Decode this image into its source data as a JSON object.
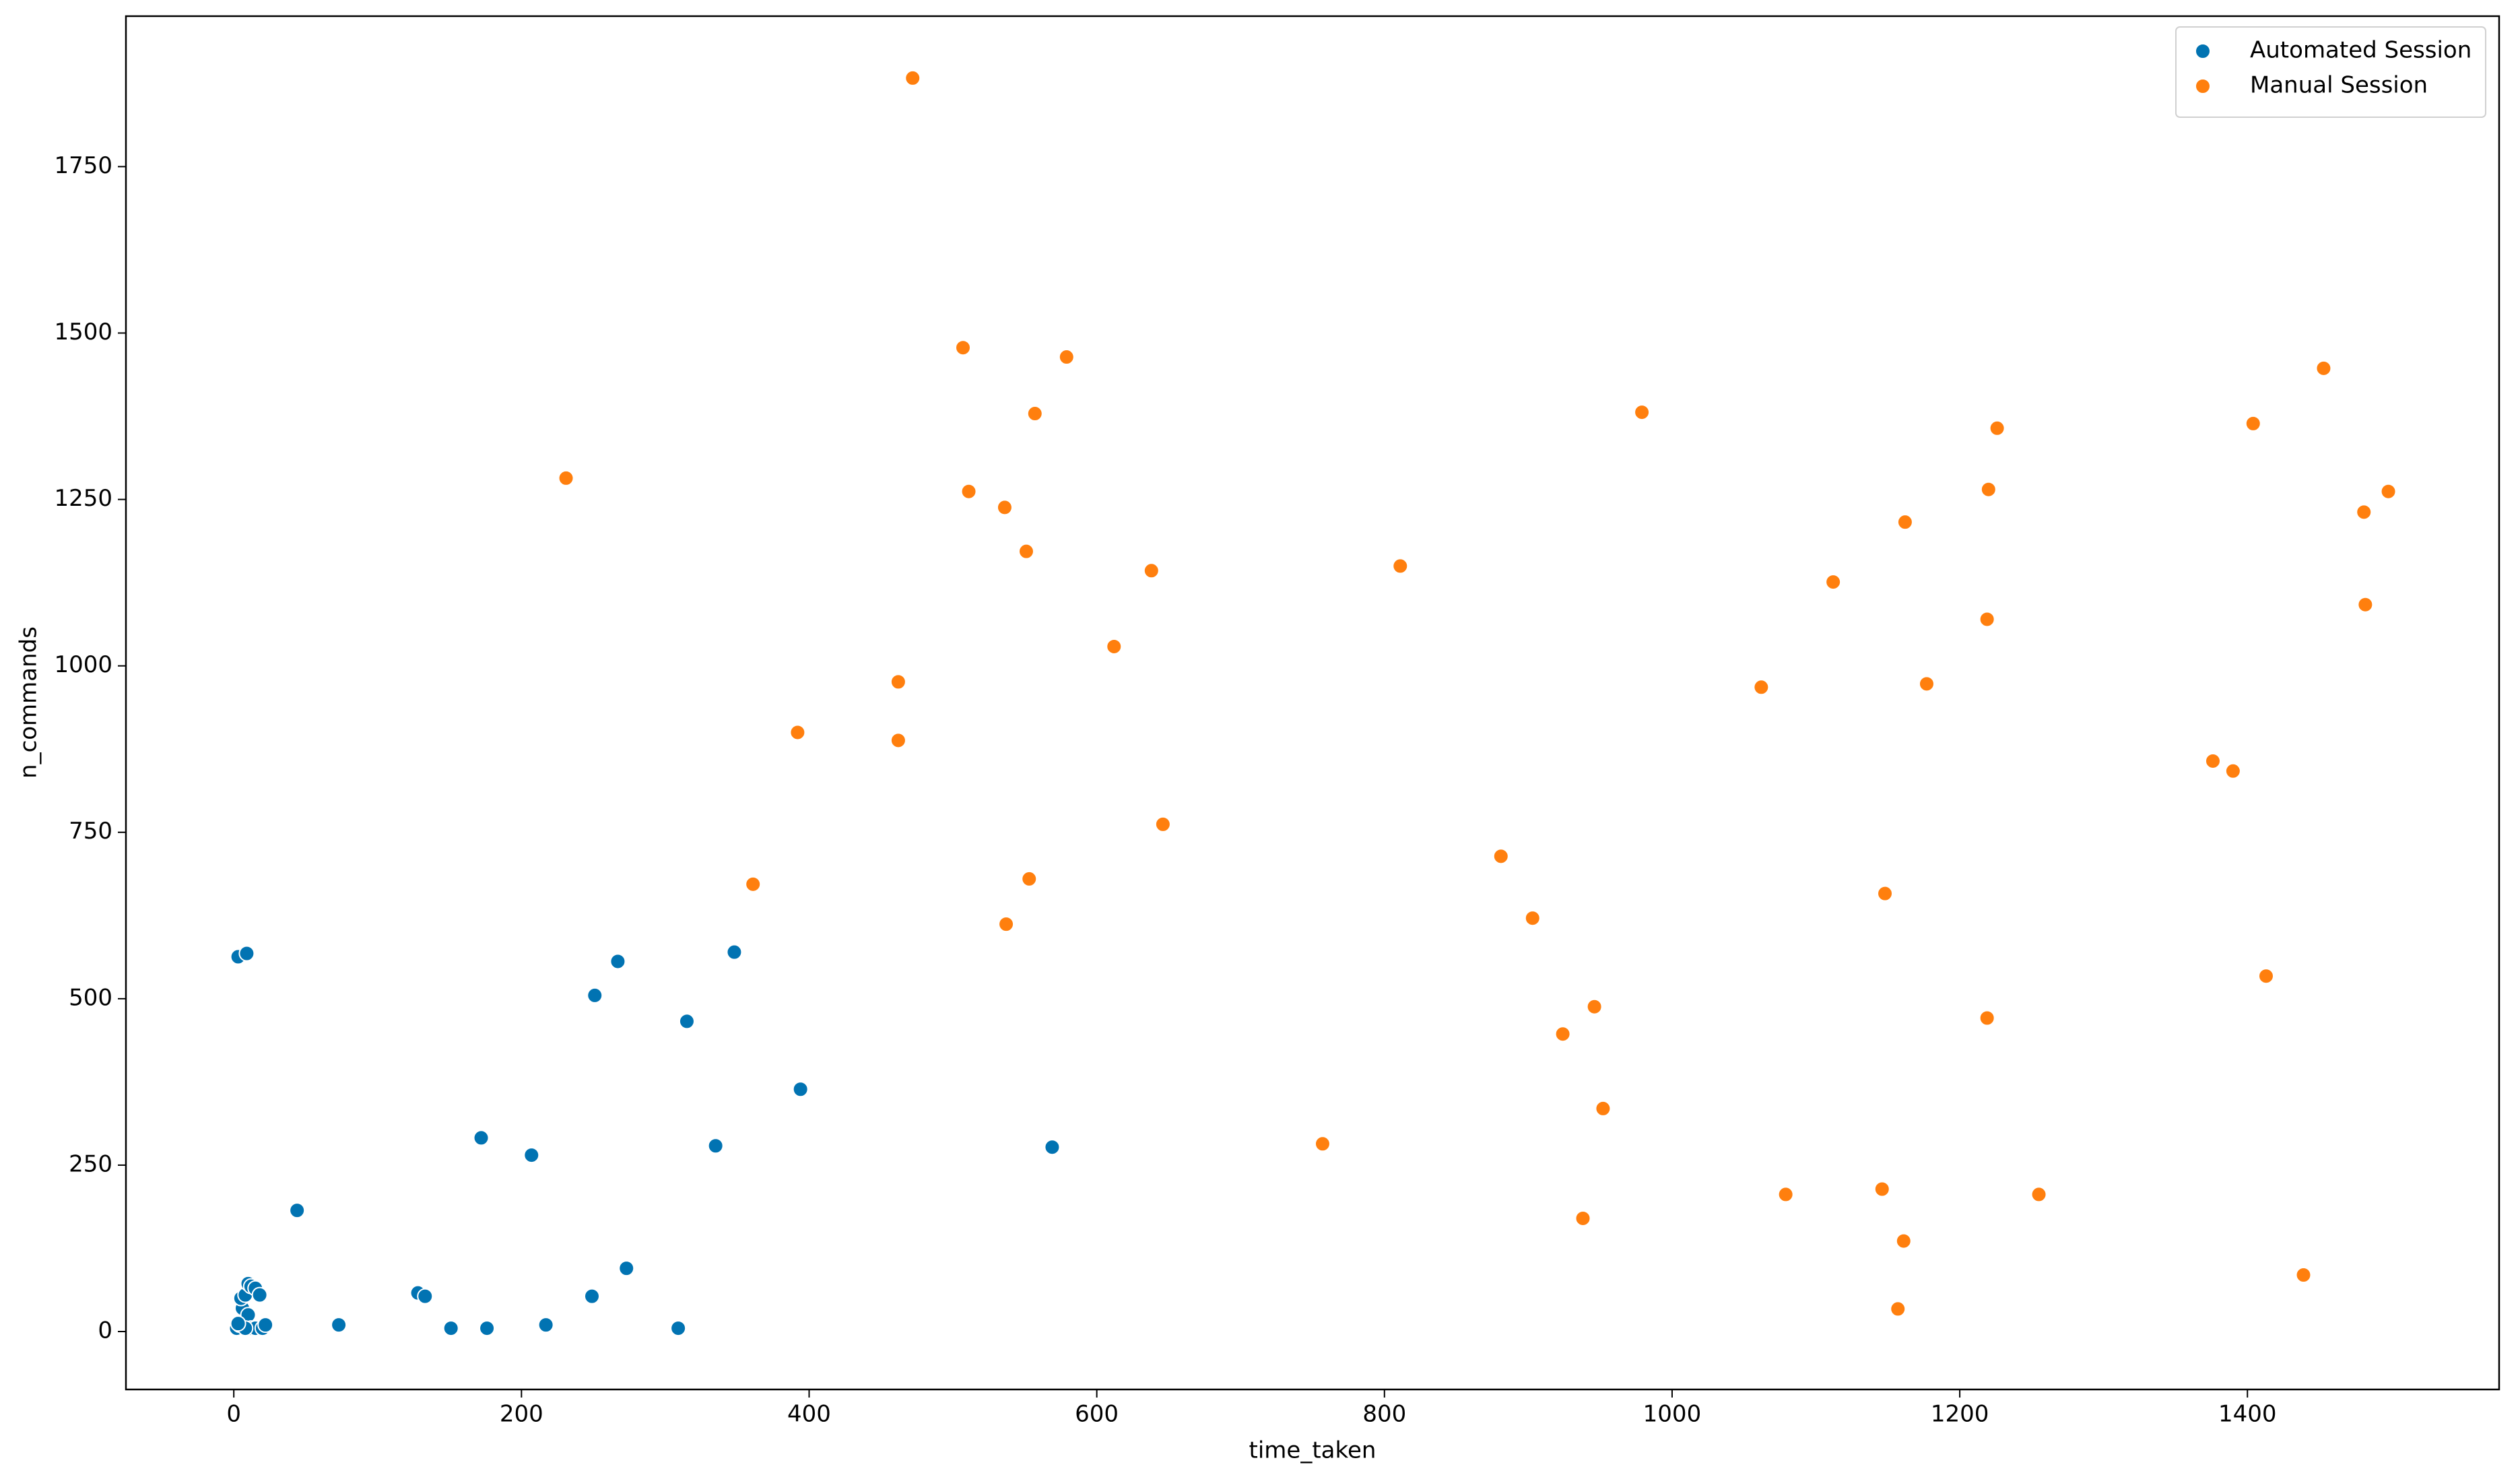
{
  "chart_data": {
    "type": "scatter",
    "x_label": "time_taken",
    "y_label": "n_commands",
    "xlim": [
      -75,
      1575
    ],
    "ylim": [
      -87,
      1976
    ],
    "xticks": [
      0,
      200,
      400,
      600,
      800,
      1000,
      1200,
      1400
    ],
    "yticks": [
      0,
      250,
      500,
      750,
      1000,
      1250,
      1500,
      1750
    ],
    "legend": "upper right",
    "grid": false,
    "series": [
      {
        "name": "Automated Session",
        "color": "#0173b2",
        "x": [
          3,
          9,
          44,
          172,
          207,
          251,
          267,
          315,
          348,
          394,
          335,
          569,
          128,
          133,
          73,
          151,
          176,
          217,
          249,
          273,
          309,
          2,
          4,
          6,
          5,
          8,
          10,
          12,
          15,
          18,
          10,
          12,
          15,
          20,
          22,
          8,
          3
        ],
        "values": [
          563,
          568,
          182,
          291,
          265,
          505,
          556,
          466,
          570,
          364,
          279,
          277,
          58,
          53,
          10,
          5,
          5,
          10,
          53,
          95,
          5,
          5,
          10,
          35,
          50,
          55,
          72,
          68,
          65,
          55,
          25,
          5,
          5,
          5,
          10,
          5,
          12
        ]
      },
      {
        "name": "Manual Session",
        "color": "#ff7f0e",
        "x": [
          472,
          507,
          579,
          557,
          231,
          511,
          536,
          551,
          638,
          612,
          462,
          392,
          462,
          646,
          361,
          553,
          537,
          811,
          979,
          881,
          903,
          946,
          924,
          952,
          938,
          757,
          1062,
          1112,
          1079,
          1162,
          1177,
          1148,
          1146,
          1161,
          1157,
          1220,
          1226,
          1219,
          1219,
          1255,
          1376,
          1390,
          1404,
          1413,
          1453,
          1481,
          1498,
          1482,
          1439
        ],
        "values": [
          1883,
          1478,
          1464,
          1379,
          1282,
          1262,
          1238,
          1172,
          1143,
          1029,
          976,
          900,
          888,
          762,
          672,
          680,
          612,
          1150,
          1381,
          714,
          621,
          488,
          447,
          335,
          170,
          282,
          968,
          1126,
          206,
          1216,
          973,
          658,
          214,
          136,
          34,
          1265,
          1357,
          1070,
          471,
          206,
          857,
          842,
          1364,
          534,
          1447,
          1231,
          1262,
          1092,
          85
        ]
      }
    ]
  }
}
